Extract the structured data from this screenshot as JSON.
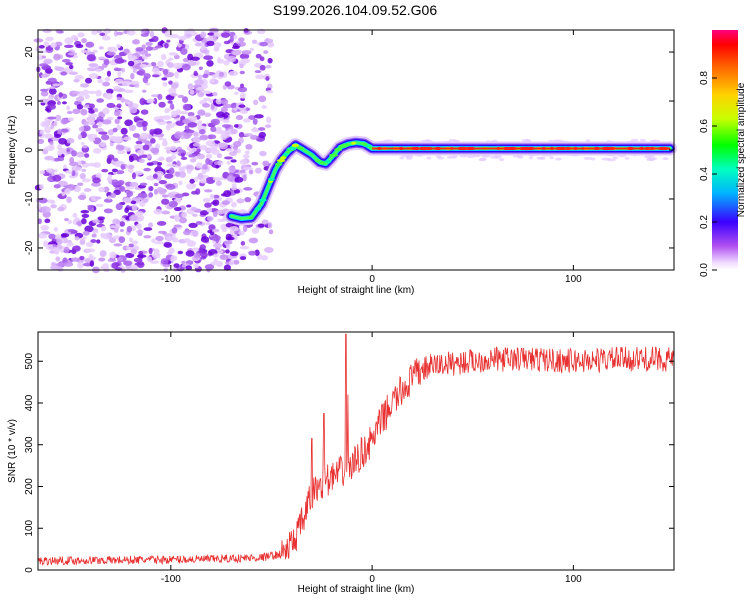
{
  "title": "S199.2026.104.09.52.G06",
  "chart_data": [
    {
      "type": "heatmap",
      "name": "spectrogram",
      "xlabel": "Height of straight line (km)",
      "ylabel": "Frequency (Hz)",
      "xlim": [
        -166,
        150
      ],
      "ylim": [
        -24.5,
        24.5
      ],
      "xticks": [
        -100,
        0,
        100
      ],
      "xtick_labels": [
        "-100",
        "0",
        "100"
      ],
      "yticks": [
        -20,
        -10,
        0,
        10,
        20
      ],
      "ytick_labels": [
        "-20",
        "-10",
        "0",
        "10",
        "20"
      ],
      "ridge": {
        "x": [
          -70,
          -65,
          -60,
          -55,
          -52,
          -48,
          -45,
          -42,
          -38,
          -34,
          -30,
          -26,
          -23,
          -20,
          -16,
          -12,
          -8,
          -4,
          0,
          20,
          60,
          100,
          148
        ],
        "y": [
          -13.5,
          -14,
          -13.8,
          -11,
          -8,
          -4,
          -2,
          -0.5,
          1,
          0,
          -1,
          -2.5,
          -2.8,
          -1.5,
          0.5,
          1.2,
          1.5,
          1.3,
          0.3,
          0.3,
          0.3,
          0.3,
          0.3
        ]
      },
      "colorbar": {
        "label": "Normalized spectral amplitude",
        "range": [
          0.0,
          1.0
        ],
        "ticks": [
          0.0,
          0.2,
          0.4,
          0.6,
          0.8
        ],
        "tick_labels": [
          "0.0",
          "0.2",
          "0.4",
          "0.6",
          "0.8"
        ]
      }
    },
    {
      "type": "line",
      "name": "snr",
      "color": "#e83030",
      "xlabel": "Height of straight line (km)",
      "ylabel": "SNR (10 * v/v)",
      "xlim": [
        -166,
        150
      ],
      "ylim": [
        0,
        570
      ],
      "xticks": [
        -100,
        0,
        100
      ],
      "xtick_labels": [
        "-100",
        "0",
        "100"
      ],
      "yticks": [
        0,
        100,
        200,
        300,
        400,
        500
      ],
      "ytick_labels": [
        "0",
        "100",
        "200",
        "300",
        "400",
        "500"
      ],
      "trend": {
        "x": [
          -166,
          -120,
          -80,
          -55,
          -45,
          -40,
          -35,
          -30,
          -25,
          -20,
          -15,
          -10,
          -5,
          0,
          5,
          10,
          15,
          20,
          25,
          30,
          40,
          60,
          80,
          100,
          120,
          150
        ],
        "y": [
          22,
          24,
          26,
          30,
          38,
          60,
          110,
          180,
          210,
          220,
          235,
          250,
          280,
          310,
          360,
          400,
          430,
          460,
          480,
          490,
          495,
          505,
          505,
          500,
          505,
          505
        ]
      },
      "spikes": [
        {
          "x": -30,
          "y": 315
        },
        {
          "x": -24,
          "y": 375
        },
        {
          "x": -13,
          "y": 565
        },
        {
          "x": -12,
          "y": 420
        }
      ]
    }
  ]
}
